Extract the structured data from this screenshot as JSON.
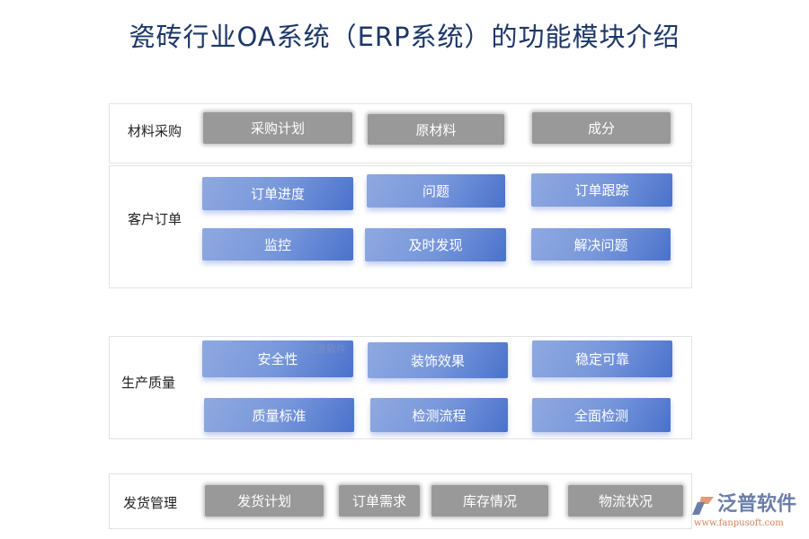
{
  "title": "瓷砖行业OA系统（ERP系统）的功能模块介绍",
  "sections": [
    {
      "label": "材料采购",
      "items": [
        "采购计划",
        "原材料",
        "成分"
      ]
    },
    {
      "label": "客户订单",
      "items": [
        "订单进度",
        "问题",
        "订单跟踪",
        "监控",
        "及时发现",
        "解决问题"
      ]
    },
    {
      "label": "生产质量",
      "items": [
        "安全性",
        "装饰效果",
        "稳定可靠",
        "质量标准",
        "检测流程",
        "全面检测"
      ]
    },
    {
      "label": "发货管理",
      "items": [
        "发货计划",
        "订单需求",
        "库存情况",
        "物流状况"
      ]
    }
  ],
  "watermark": "泛普软件",
  "logo": {
    "name": "泛普软件",
    "url": "www.fanpusoft.com"
  },
  "colors": {
    "gray_button": "#999999",
    "blue_start": "#8fa9e0",
    "blue_end": "#4a72cc",
    "title": "#1d3768"
  }
}
